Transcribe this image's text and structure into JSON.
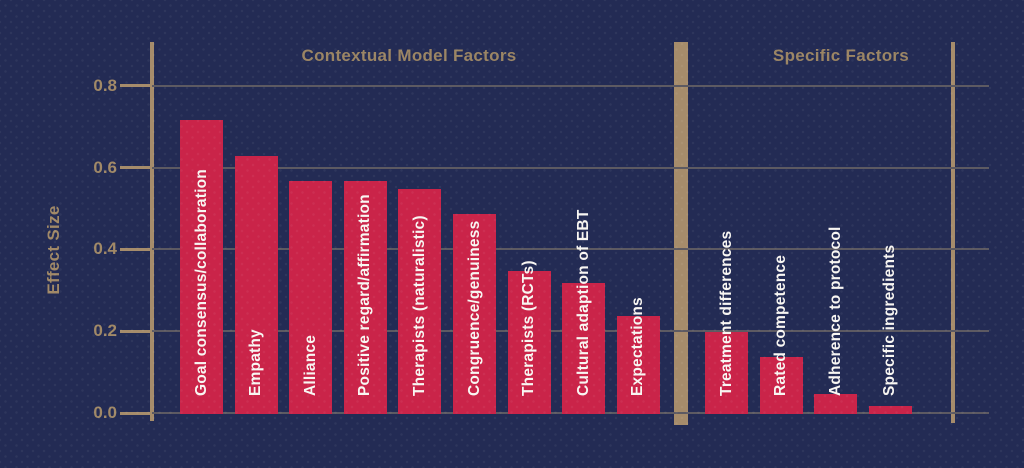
{
  "chart_data": {
    "type": "bar",
    "ylabel": "Effect Size",
    "ylim": [
      0,
      0.85
    ],
    "grid": true,
    "legend": null,
    "yticks": [
      {
        "label": "0.0",
        "value": 0.0
      },
      {
        "label": "0.2",
        "value": 0.2
      },
      {
        "label": "0.4",
        "value": 0.4
      },
      {
        "label": "0.6",
        "value": 0.6
      },
      {
        "label": "0.8",
        "value": 0.8
      }
    ],
    "sections": [
      {
        "title": "Contextual Model Factors",
        "bars": [
          {
            "label": "Goal consensus/collaboration",
            "value": 0.72
          },
          {
            "label": "Empathy",
            "value": 0.63
          },
          {
            "label": "Alliance",
            "value": 0.57
          },
          {
            "label": "Positive regard/affirmation",
            "value": 0.57
          },
          {
            "label": "Therapists (naturalistic)",
            "value": 0.55
          },
          {
            "label": "Congruence/genuiness",
            "value": 0.49
          },
          {
            "label": "Therapists (RCTs)",
            "value": 0.35
          },
          {
            "label": "Cultural adaption of EBT",
            "value": 0.32
          },
          {
            "label": "Expectations",
            "value": 0.24
          }
        ]
      },
      {
        "title": "Specific Factors",
        "bars": [
          {
            "label": "Treatment differences",
            "value": 0.2
          },
          {
            "label": "Rated competence",
            "value": 0.14
          },
          {
            "label": "Adherence to protocol",
            "value": 0.05
          },
          {
            "label": "Specific ingredients",
            "value": 0.02
          }
        ]
      }
    ],
    "colors": {
      "bar": "#ca2449",
      "background": "#232b54",
      "axis": "#a68c6b",
      "grid": "#5d5a62",
      "tick_text": "#a18967",
      "section_title_text": "#9b8564",
      "bar_label_text": "#f8f6f2"
    }
  }
}
